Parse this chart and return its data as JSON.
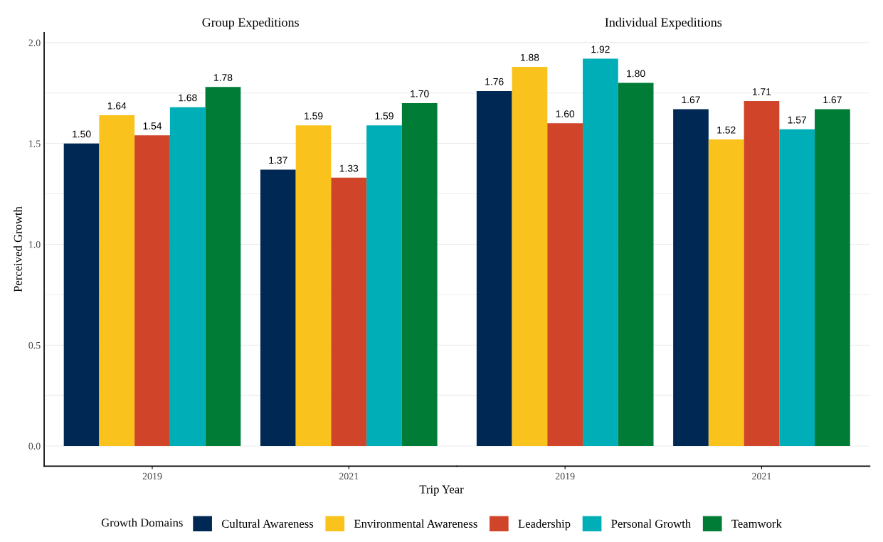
{
  "chart_data": [
    {
      "type": "bar",
      "title": "Group Expeditions",
      "xlabel": "Trip Year",
      "ylabel": "Perceived Growth",
      "legend_title": "Growth Domains",
      "legend": "bottom",
      "grid": "y",
      "categories": [
        "2019",
        "2021"
      ],
      "ylim": [
        -0.1,
        2.05
      ],
      "yticks": [
        {
          "value": 0,
          "label": "0.0"
        },
        {
          "value": 0.25,
          "label": null
        },
        {
          "value": 0.5,
          "label": "0.5"
        },
        {
          "value": 0.75,
          "label": null
        },
        {
          "value": 1,
          "label": "1.0"
        },
        {
          "value": 1.25,
          "label": null
        },
        {
          "value": 1.5,
          "label": "1.5"
        },
        {
          "value": 1.75,
          "label": null
        },
        {
          "value": 2,
          "label": "2.0"
        }
      ],
      "series": [
        {
          "name": "Cultural Awareness",
          "color": "#002855",
          "values": [
            1.5,
            1.37
          ],
          "value_labels": [
            "1.50",
            "1.37"
          ]
        },
        {
          "name": "Environmental Awareness",
          "color": "#f9c21c",
          "values": [
            1.64,
            1.59
          ],
          "value_labels": [
            "1.64",
            "1.59"
          ]
        },
        {
          "name": "Leadership",
          "color": "#d0442a",
          "values": [
            1.54,
            1.33
          ],
          "value_labels": [
            "1.54",
            "1.33"
          ]
        },
        {
          "name": "Personal Growth",
          "color": "#00aeb8",
          "values": [
            1.68,
            1.59
          ],
          "value_labels": [
            "1.68",
            "1.59"
          ]
        },
        {
          "name": "Teamwork",
          "color": "#007c36",
          "values": [
            1.78,
            1.7
          ],
          "value_labels": [
            "1.78",
            "1.70"
          ]
        }
      ]
    },
    {
      "type": "bar",
      "title": "Individual Expeditions",
      "grid": "y",
      "tick_labels": "x",
      "categories": [
        "2019",
        "2021"
      ],
      "ylim": [
        -0.1,
        2.05
      ],
      "yticks": [
        {
          "value": 0,
          "label": null
        },
        {
          "value": 0.25,
          "label": null
        },
        {
          "value": 0.5,
          "label": null
        },
        {
          "value": 0.75,
          "label": null
        },
        {
          "value": 1,
          "label": null
        },
        {
          "value": 1.25,
          "label": null
        },
        {
          "value": 1.5,
          "label": null
        },
        {
          "value": 1.75,
          "label": null
        },
        {
          "value": 2,
          "label": null
        }
      ],
      "series": [
        {
          "name": "Cultural Awareness",
          "color": "#002855",
          "values": [
            1.76,
            1.67
          ],
          "value_labels": [
            "1.76",
            "1.67"
          ]
        },
        {
          "name": "Environmental Awareness",
          "color": "#f9c21c",
          "values": [
            1.88,
            1.52
          ],
          "value_labels": [
            "1.88",
            "1.52"
          ]
        },
        {
          "name": "Leadership",
          "color": "#d0442a",
          "values": [
            1.6,
            1.71
          ],
          "value_labels": [
            "1.60",
            "1.71"
          ]
        },
        {
          "name": "Personal Growth",
          "color": "#00aeb8",
          "values": [
            1.92,
            1.57
          ],
          "value_labels": [
            "1.92",
            "1.57"
          ]
        },
        {
          "name": "Teamwork",
          "color": "#007c36",
          "values": [
            1.8,
            1.67
          ],
          "value_labels": [
            "1.80",
            "1.67"
          ]
        }
      ]
    }
  ]
}
